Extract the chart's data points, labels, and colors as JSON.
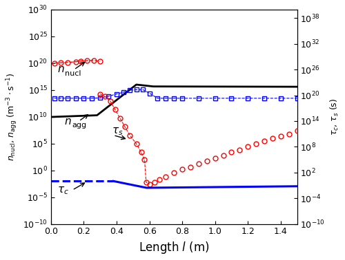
{
  "xlabel": "Length $\\ell$ (m)",
  "ylabel_left": "$n_\\mathrm{nucl}$, $n_\\mathrm{agg}$ (m$^{-3}\\cdot$s$^{-1}$)",
  "ylabel_right": "$\\tau_c$, $\\tau_s$ (s)",
  "xlim": [
    0.0,
    1.5
  ],
  "ylim_left": [
    1e-10,
    1e+30
  ],
  "ylim_right": [
    1e-10,
    1e+40
  ],
  "background_color": "#ffffff"
}
